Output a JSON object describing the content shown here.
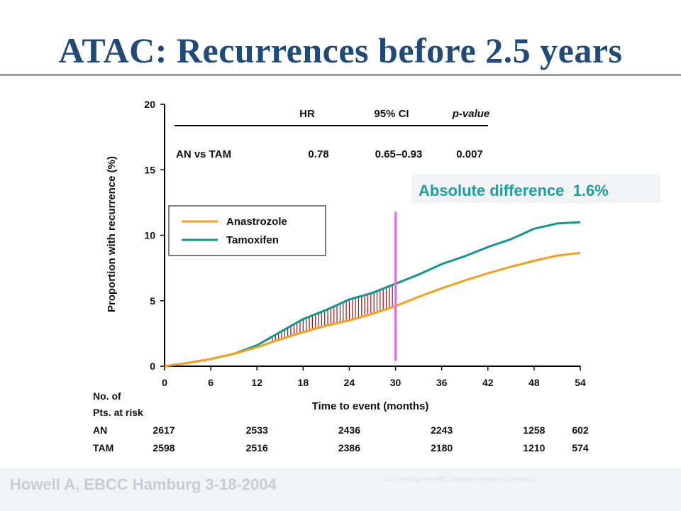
{
  "header": {
    "title": "ATAC: Recurrences before 2.5 years"
  },
  "footer": {
    "credit": "Howell A, EBCC Hamburg 3-18-2004",
    "footnote": "*   Censoring non-BC deaths before recurrence"
  },
  "colors": {
    "anastrozole": "#f5a01a",
    "tamoxifen": "#12968f",
    "marker": "#e86ee8",
    "hatch": "#8c1414",
    "title": "#1f4a7a"
  },
  "stats_table": {
    "headers": [
      "HR",
      "95% CI",
      "p-value"
    ],
    "row": [
      "AN vs TAM",
      "0.78",
      "0.65–0.93",
      "0.007"
    ]
  },
  "annotation": "Absolute difference  1.6%",
  "risk_table": {
    "label_line1": "No. of",
    "label_line2": "Pts. at risk",
    "rows": [
      {
        "name": "AN",
        "values": [
          "2617",
          "2533",
          "2436",
          "2243",
          "1258",
          "602"
        ]
      },
      {
        "name": "TAM",
        "values": [
          "2598",
          "2516",
          "2386",
          "2180",
          "1210",
          "574"
        ]
      }
    ],
    "months": [
      0,
      12,
      24,
      36,
      48,
      54
    ]
  },
  "chart_data": {
    "type": "line",
    "xlabel": "Time to event (months)",
    "ylabel": "Proportion with recurrence (%)",
    "xlim": [
      0,
      54
    ],
    "ylim": [
      0,
      20
    ],
    "xticks": [
      "0",
      "6",
      "12",
      "18",
      "24",
      "30",
      "36",
      "42",
      "48",
      "54"
    ],
    "yticks": [
      "0",
      "5",
      "10",
      "15",
      "20"
    ],
    "legend": {
      "position": "upper-left",
      "entries": [
        "Anastrozole",
        "Tamoxifen"
      ]
    },
    "highlight_month": 30,
    "series": [
      {
        "name": "Anastrozole",
        "x": [
          0,
          3,
          6,
          9,
          12,
          15,
          18,
          21,
          24,
          27,
          30,
          33,
          36,
          39,
          42,
          45,
          48,
          51,
          54
        ],
        "y": [
          0,
          0.25,
          0.55,
          0.95,
          1.45,
          2.05,
          2.6,
          3.1,
          3.5,
          4.0,
          4.6,
          5.3,
          5.95,
          6.55,
          7.1,
          7.6,
          8.05,
          8.45,
          8.65
        ]
      },
      {
        "name": "Tamoxifen",
        "x": [
          0,
          3,
          6,
          9,
          12,
          15,
          18,
          21,
          24,
          27,
          30,
          33,
          36,
          39,
          42,
          45,
          48,
          51,
          54
        ],
        "y": [
          0,
          0.25,
          0.55,
          0.95,
          1.6,
          2.6,
          3.6,
          4.3,
          5.1,
          5.6,
          6.3,
          7.0,
          7.8,
          8.4,
          9.1,
          9.7,
          10.5,
          10.9,
          11.0
        ]
      }
    ]
  }
}
